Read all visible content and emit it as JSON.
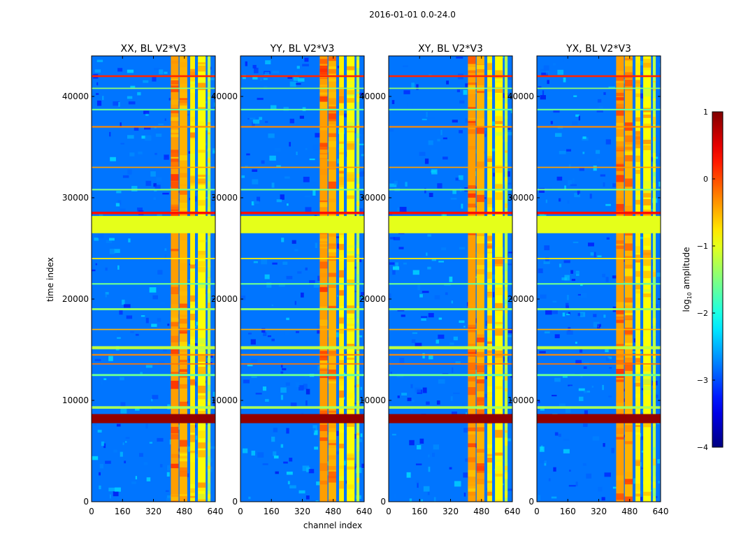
{
  "chart_data": {
    "type": "heatmap",
    "suptitle": "2016-01-01 0.0-24.0",
    "xlabel": "channel index",
    "ylabel": "time index",
    "xlim": [
      0,
      640
    ],
    "ylim": [
      0,
      44000
    ],
    "x_ticks": [
      0,
      160,
      320,
      480,
      640
    ],
    "y_ticks": [
      0,
      10000,
      20000,
      30000,
      40000
    ],
    "colormap": "jet",
    "panels": [
      {
        "title": "XX, BL V2*V3"
      },
      {
        "title": "YY, BL V2*V3"
      },
      {
        "title": "XY, BL V2*V3"
      },
      {
        "title": "YX, BL V2*V3"
      }
    ],
    "colorbar": {
      "label_prefix": "log",
      "label_sub": "10",
      "label_suffix": " amplitude",
      "range": [
        -4,
        1
      ],
      "ticks": [
        1,
        0,
        -1,
        -2,
        -3,
        -4
      ],
      "tick_labels": [
        "1",
        "0",
        "−1",
        "−2",
        "−3",
        "−4"
      ]
    },
    "background_level": -2.8,
    "bright_channel_bands": [
      {
        "start": 410,
        "end": 450,
        "level": -0.4
      },
      {
        "start": 455,
        "end": 495,
        "level": -0.5
      },
      {
        "start": 510,
        "end": 535,
        "level": -0.8
      },
      {
        "start": 550,
        "end": 590,
        "level": -0.9
      },
      {
        "start": 600,
        "end": 615,
        "level": -1.2
      }
    ],
    "flagged_time_ranges": [
      {
        "start": 26500,
        "end": 28200,
        "level": -1.0
      }
    ],
    "rfi_time_lines": [
      {
        "t": 8200,
        "level": 0.9,
        "thickness": 900
      },
      {
        "t": 9300,
        "level": -1.3,
        "thickness": 250
      },
      {
        "t": 12500,
        "level": -1.6,
        "thickness": 200
      },
      {
        "t": 13600,
        "level": -0.2,
        "thickness": 120
      },
      {
        "t": 14500,
        "level": -0.3,
        "thickness": 150
      },
      {
        "t": 15200,
        "level": -1.2,
        "thickness": 300
      },
      {
        "t": 17000,
        "level": -0.5,
        "thickness": 120
      },
      {
        "t": 19000,
        "level": -1.4,
        "thickness": 200
      },
      {
        "t": 21500,
        "level": -1.6,
        "thickness": 150
      },
      {
        "t": 24000,
        "level": -0.8,
        "thickness": 120
      },
      {
        "t": 28500,
        "level": 0.3,
        "thickness": 250
      },
      {
        "t": 30800,
        "level": -1.5,
        "thickness": 150
      },
      {
        "t": 33000,
        "level": -0.4,
        "thickness": 120
      },
      {
        "t": 37000,
        "level": -0.3,
        "thickness": 150
      },
      {
        "t": 38700,
        "level": -1.6,
        "thickness": 150
      },
      {
        "t": 40800,
        "level": -1.4,
        "thickness": 120
      },
      {
        "t": 42000,
        "level": 0.2,
        "thickness": 180
      }
    ]
  }
}
